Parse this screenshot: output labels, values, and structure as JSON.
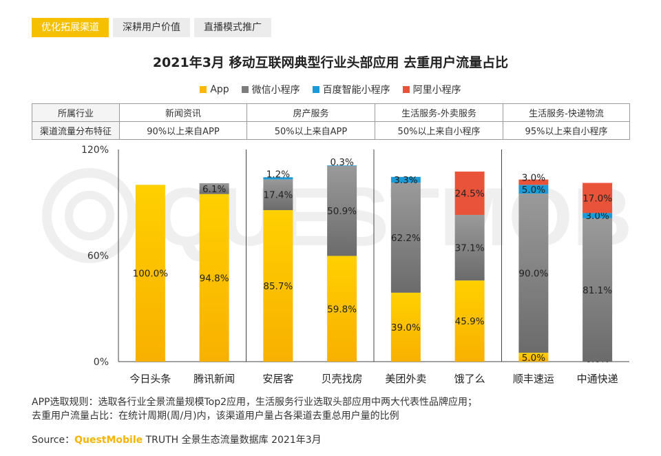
{
  "tabs": [
    {
      "label": "优化拓展渠道",
      "active": true
    },
    {
      "label": "深耕用户价值",
      "active": false
    },
    {
      "label": "直播模式推广",
      "active": false
    }
  ],
  "watermark": "QUESTMOBILE",
  "info_table": {
    "row1_header": "所属行业",
    "row2_header": "渠道流量分布特征",
    "industries": [
      "新闻资讯",
      "房产服务",
      "生活服务-外卖服务",
      "生活服务-快递物流"
    ],
    "features": [
      "90%以上来自APP",
      "50%以上来自APP",
      "50%以上来自小程序",
      "95%以上来自小程序"
    ]
  },
  "notes": {
    "line1": "APP选取规则：选取各行业全景流量规模Top2应用，生活服务行业选取头部应用中两大代表性品牌应用；",
    "line2": "去重用户流量占比：在统计周期(周/月)内，该渠道用户量占各渠道去重总用户量的比例"
  },
  "source": {
    "prefix": "Source：",
    "brand": "QuestMobile",
    "suffix": " TRUTH 全景生态流量数据库 2021年3月"
  },
  "colors": {
    "app": "#fbb800",
    "wechat": "#7d7d7d",
    "baidu": "#1a9ad6",
    "ali": "#e8533a",
    "tab_active": "#f5c000"
  },
  "chart_data": {
    "type": "bar",
    "stacked": true,
    "title": "2021年3月 移动互联网典型行业头部应用 去重用户流量占比",
    "categories": [
      "今日头条",
      "腾讯新闻",
      "安居客",
      "贝壳找房",
      "美团外卖",
      "饿了么",
      "顺丰速运",
      "中通快递"
    ],
    "groups": [
      {
        "name": "新闻资讯",
        "members": [
          "今日头条",
          "腾讯新闻"
        ]
      },
      {
        "name": "房产服务",
        "members": [
          "安居客",
          "贝壳找房"
        ]
      },
      {
        "name": "生活服务-外卖服务",
        "members": [
          "美团外卖",
          "饿了么"
        ]
      },
      {
        "name": "生活服务-快递物流",
        "members": [
          "顺丰速运",
          "中通快递"
        ]
      }
    ],
    "series": [
      {
        "name": "App",
        "color": "#fbb800",
        "values": [
          100.0,
          94.8,
          85.7,
          59.8,
          39.0,
          45.9,
          5.0,
          0.0
        ]
      },
      {
        "name": "微信小程序",
        "color": "#7d7d7d",
        "values": [
          0.0,
          6.1,
          17.4,
          50.9,
          62.2,
          37.1,
          90.0,
          81.1
        ]
      },
      {
        "name": "百度智能小程序",
        "color": "#1a9ad6",
        "values": [
          0.0,
          0.0,
          1.2,
          0.3,
          3.3,
          0.0,
          5.0,
          3.0
        ]
      },
      {
        "name": "阿里小程序",
        "color": "#e8533a",
        "values": [
          0.0,
          0.0,
          0.0,
          0.0,
          0.0,
          24.5,
          3.0,
          17.0
        ]
      }
    ],
    "data_labels": [
      [
        "100.0%",
        "94.8%",
        "85.7%",
        "59.8%",
        "39.0%",
        "45.9%",
        "5.0%",
        "0.0%"
      ],
      [
        null,
        "6.1%",
        "17.4%",
        "50.9%",
        "62.2%",
        "37.1%",
        "90.0%",
        "81.1%"
      ],
      [
        null,
        null,
        "1.2%",
        "0.3%",
        "3.3%",
        null,
        "5.0%",
        "3.0%"
      ],
      [
        null,
        null,
        null,
        null,
        null,
        "24.5%",
        "3.0%",
        "17.0%"
      ]
    ],
    "yticks": [
      "0%",
      "60%",
      "120%"
    ],
    "ylim": [
      0,
      120
    ],
    "xlabel": "",
    "ylabel": "",
    "legend_position": "top-center"
  }
}
